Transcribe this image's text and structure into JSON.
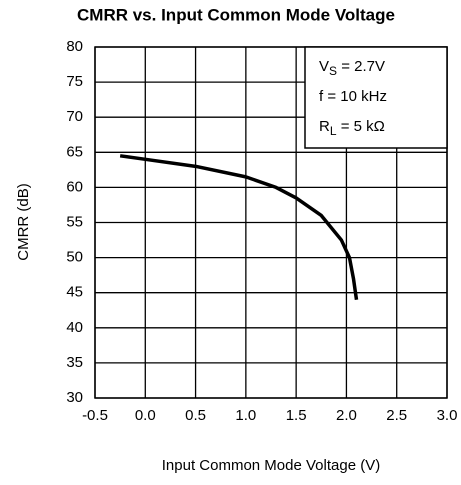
{
  "chart_data": {
    "type": "line",
    "title": "CMRR vs. Input Common Mode Voltage",
    "xlabel": "Input Common Mode Voltage (V)",
    "ylabel": "CMRR (dB)",
    "annotations": [
      {
        "main": "V",
        "sub": "S",
        "rest": " = 2.7V"
      },
      {
        "main": "f = 10 kHz"
      },
      {
        "main": "R",
        "sub": "L",
        "rest": " = 5 kΩ"
      }
    ],
    "series": [
      {
        "name": "CMRR",
        "color": "#000000",
        "x": [
          -0.25,
          0,
          0.5,
          1.0,
          1.3,
          1.5,
          1.75,
          1.95,
          2.03,
          2.07,
          2.1
        ],
        "values": [
          64.5,
          64,
          63,
          61.5,
          60,
          58.5,
          56,
          52.5,
          50,
          47,
          44
        ]
      }
    ],
    "xlim": [
      -0.5,
      3.0
    ],
    "xticks": [
      -0.5,
      {
        "value": 0,
        "label": "0.0"
      },
      0.5,
      {
        "value": 1,
        "label": "1.0"
      },
      1.5,
      {
        "value": 2,
        "label": "2.0"
      },
      2.5,
      {
        "value": 3,
        "label": "3.0"
      }
    ],
    "ylim": [
      30,
      80
    ],
    "yticks": [
      30,
      35,
      40,
      45,
      50,
      55,
      60,
      65,
      70,
      75,
      80
    ],
    "grid": true
  }
}
